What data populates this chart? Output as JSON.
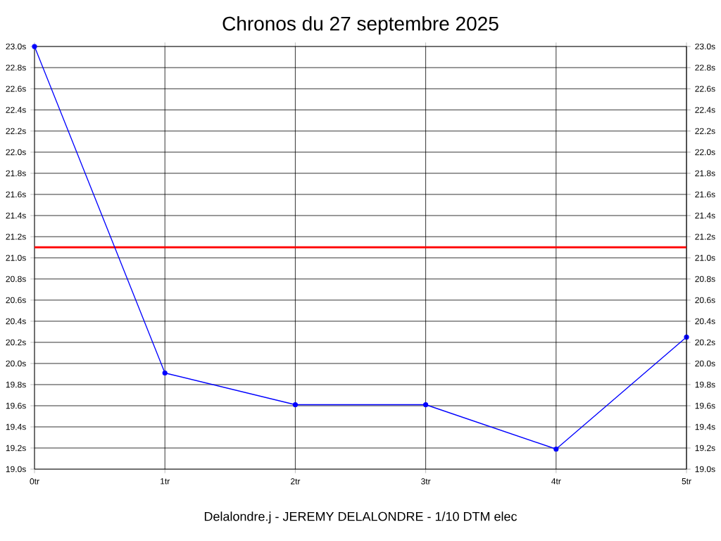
{
  "chart_data": {
    "type": "line",
    "title": "Chronos du 27 septembre 2025",
    "categories": [
      "0tr",
      "1tr",
      "2tr",
      "3tr",
      "4tr",
      "5tr"
    ],
    "series": [
      {
        "color": "#0000ff",
        "values": [
          23.0,
          19.91,
          19.61,
          19.61,
          19.19,
          20.25
        ]
      }
    ],
    "marker": "circle",
    "line_style": "solid",
    "grid": true,
    "ylim": [
      19.0,
      23.0
    ],
    "yticks": [
      {
        "value": 19.0,
        "label": "19.0s"
      },
      {
        "value": 19.2,
        "label": "19.2s"
      },
      {
        "value": 19.4,
        "label": "19.4s"
      },
      {
        "value": 19.6,
        "label": "19.6s"
      },
      {
        "value": 19.8,
        "label": "19.8s"
      },
      {
        "value": 20.0,
        "label": "20.0s"
      },
      {
        "value": 20.2,
        "label": "20.2s"
      },
      {
        "value": 20.4,
        "label": "20.4s"
      },
      {
        "value": 20.6,
        "label": "20.6s"
      },
      {
        "value": 20.8,
        "label": "20.8s"
      },
      {
        "value": 21.0,
        "label": "21.0s"
      },
      {
        "value": 21.2,
        "label": "21.2s"
      },
      {
        "value": 21.4,
        "label": "21.4s"
      },
      {
        "value": 21.6,
        "label": "21.6s"
      },
      {
        "value": 21.8,
        "label": "21.8s"
      },
      {
        "value": 22.0,
        "label": "22.0s"
      },
      {
        "value": 22.2,
        "label": "22.2s"
      },
      {
        "value": 22.4,
        "label": "22.4s"
      },
      {
        "value": 22.6,
        "label": "22.6s"
      },
      {
        "value": 22.8,
        "label": "22.8s"
      },
      {
        "value": 23.0,
        "label": "23.0s"
      }
    ],
    "y2lim": [
      19.0,
      23.0
    ],
    "y2ticks": [
      {
        "value": 19.0,
        "label": "19.0s"
      },
      {
        "value": 19.2,
        "label": "19.2s"
      },
      {
        "value": 19.4,
        "label": "19.4s"
      },
      {
        "value": 19.6,
        "label": "19.6s"
      },
      {
        "value": 19.8,
        "label": "19.8s"
      },
      {
        "value": 20.0,
        "label": "20.0s"
      },
      {
        "value": 20.2,
        "label": "20.2s"
      },
      {
        "value": 20.4,
        "label": "20.4s"
      },
      {
        "value": 20.6,
        "label": "20.6s"
      },
      {
        "value": 20.8,
        "label": "20.8s"
      },
      {
        "value": 21.0,
        "label": "21.0s"
      },
      {
        "value": 21.2,
        "label": "21.2s"
      },
      {
        "value": 21.4,
        "label": "21.4s"
      },
      {
        "value": 21.6,
        "label": "21.6s"
      },
      {
        "value": 21.8,
        "label": "21.8s"
      },
      {
        "value": 22.0,
        "label": "22.0s"
      },
      {
        "value": 22.2,
        "label": "22.2s"
      },
      {
        "value": 22.4,
        "label": "22.4s"
      },
      {
        "value": 22.6,
        "label": "22.6s"
      },
      {
        "value": 22.8,
        "label": "22.8s"
      },
      {
        "value": 23.0,
        "label": "23.0s"
      }
    ],
    "ref_lines": [
      {
        "axis": "y",
        "value": 21.1,
        "color": "#ff0000"
      }
    ],
    "annotations": [
      "Delalondre.j - JEREMY DELALONDRE - 1/10 DTM elec"
    ]
  }
}
